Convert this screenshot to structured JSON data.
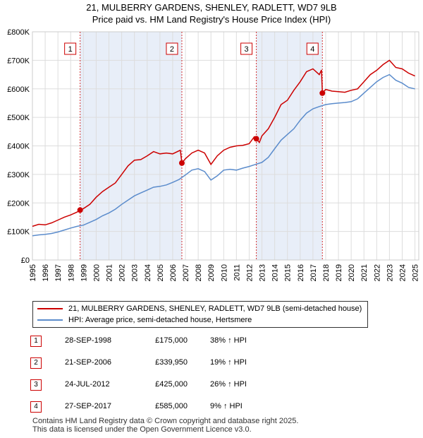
{
  "header": {
    "title_line1": "21, MULBERRY GARDENS, SHENLEY, RADLETT, WD7 9LB",
    "title_line2": "Price paid vs. HM Land Registry's House Price Index (HPI)"
  },
  "chart_data": {
    "type": "line",
    "title": "21, MULBERRY GARDENS, SHENLEY, RADLETT, WD7 9LB",
    "subtitle": "Price paid vs. HM Land Registry's House Price Index (HPI)",
    "xlabel": "",
    "ylabel": "",
    "xlim": [
      1995,
      2025.3
    ],
    "ylim": [
      0,
      800000
    ],
    "y_ticks": [
      0,
      100000,
      200000,
      300000,
      400000,
      500000,
      600000,
      700000,
      800000
    ],
    "y_tick_labels": [
      "£0",
      "£100K",
      "£200K",
      "£300K",
      "£400K",
      "£500K",
      "£600K",
      "£700K",
      "£800K"
    ],
    "x_ticks": [
      "1995",
      "1996",
      "1997",
      "1998",
      "1999",
      "2000",
      "2001",
      "2002",
      "2003",
      "2004",
      "2005",
      "2006",
      "2007",
      "2008",
      "2009",
      "2010",
      "2011",
      "2012",
      "2013",
      "2014",
      "2015",
      "2016",
      "2017",
      "2018",
      "2019",
      "2020",
      "2021",
      "2022",
      "2023",
      "2024",
      "2025"
    ],
    "grid": true,
    "colors": {
      "property": "#cc0000",
      "hpi": "#5b8ccc",
      "shade": "#e8eef8",
      "grid": "#dddddd",
      "vline": "#cc0000"
    },
    "series": [
      {
        "name": "21, MULBERRY GARDENS, SHENLEY, RADLETT, WD7 9LB (semi-detached house)",
        "key": "property",
        "points": [
          [
            1995.0,
            118000
          ],
          [
            1995.5,
            125000
          ],
          [
            1996.0,
            123000
          ],
          [
            1996.5,
            130000
          ],
          [
            1997.0,
            140000
          ],
          [
            1997.5,
            150000
          ],
          [
            1998.0,
            158000
          ],
          [
            1998.5,
            168000
          ],
          [
            1998.74,
            175000
          ],
          [
            1999.0,
            180000
          ],
          [
            1999.5,
            195000
          ],
          [
            2000.0,
            220000
          ],
          [
            2000.5,
            240000
          ],
          [
            2001.0,
            255000
          ],
          [
            2001.5,
            270000
          ],
          [
            2002.0,
            300000
          ],
          [
            2002.5,
            330000
          ],
          [
            2003.0,
            350000
          ],
          [
            2003.5,
            352000
          ],
          [
            2004.0,
            365000
          ],
          [
            2004.5,
            380000
          ],
          [
            2005.0,
            372000
          ],
          [
            2005.5,
            375000
          ],
          [
            2006.0,
            372000
          ],
          [
            2006.6,
            385000
          ],
          [
            2006.72,
            339950
          ],
          [
            2007.0,
            355000
          ],
          [
            2007.5,
            375000
          ],
          [
            2008.0,
            385000
          ],
          [
            2008.5,
            375000
          ],
          [
            2009.0,
            335000
          ],
          [
            2009.5,
            365000
          ],
          [
            2010.0,
            385000
          ],
          [
            2010.5,
            395000
          ],
          [
            2011.0,
            400000
          ],
          [
            2011.5,
            402000
          ],
          [
            2012.0,
            408000
          ],
          [
            2012.4,
            432000
          ],
          [
            2012.56,
            425000
          ],
          [
            2012.8,
            412000
          ],
          [
            2013.0,
            435000
          ],
          [
            2013.5,
            460000
          ],
          [
            2014.0,
            500000
          ],
          [
            2014.5,
            545000
          ],
          [
            2015.0,
            560000
          ],
          [
            2015.5,
            595000
          ],
          [
            2016.0,
            625000
          ],
          [
            2016.5,
            660000
          ],
          [
            2017.0,
            670000
          ],
          [
            2017.5,
            650000
          ],
          [
            2017.67,
            666000
          ],
          [
            2017.74,
            585000
          ],
          [
            2018.0,
            598000
          ],
          [
            2018.5,
            592000
          ],
          [
            2019.0,
            590000
          ],
          [
            2019.5,
            588000
          ],
          [
            2020.0,
            595000
          ],
          [
            2020.5,
            600000
          ],
          [
            2021.0,
            625000
          ],
          [
            2021.5,
            650000
          ],
          [
            2022.0,
            665000
          ],
          [
            2022.5,
            685000
          ],
          [
            2023.0,
            700000
          ],
          [
            2023.5,
            675000
          ],
          [
            2024.0,
            670000
          ],
          [
            2024.5,
            655000
          ],
          [
            2025.0,
            645000
          ]
        ]
      },
      {
        "name": "HPI: Average price, semi-detached house, Hertsmere",
        "key": "hpi",
        "points": [
          [
            1995.0,
            85000
          ],
          [
            1995.5,
            88000
          ],
          [
            1996.0,
            90000
          ],
          [
            1996.5,
            93000
          ],
          [
            1997.0,
            98000
          ],
          [
            1997.5,
            105000
          ],
          [
            1998.0,
            112000
          ],
          [
            1998.5,
            118000
          ],
          [
            1999.0,
            122000
          ],
          [
            1999.5,
            132000
          ],
          [
            2000.0,
            142000
          ],
          [
            2000.5,
            155000
          ],
          [
            2001.0,
            165000
          ],
          [
            2001.5,
            178000
          ],
          [
            2002.0,
            195000
          ],
          [
            2002.5,
            210000
          ],
          [
            2003.0,
            225000
          ],
          [
            2003.5,
            235000
          ],
          [
            2004.0,
            245000
          ],
          [
            2004.5,
            255000
          ],
          [
            2005.0,
            258000
          ],
          [
            2005.5,
            263000
          ],
          [
            2006.0,
            272000
          ],
          [
            2006.5,
            282000
          ],
          [
            2007.0,
            298000
          ],
          [
            2007.5,
            315000
          ],
          [
            2008.0,
            320000
          ],
          [
            2008.5,
            310000
          ],
          [
            2009.0,
            280000
          ],
          [
            2009.5,
            295000
          ],
          [
            2010.0,
            315000
          ],
          [
            2010.5,
            318000
          ],
          [
            2011.0,
            315000
          ],
          [
            2011.5,
            322000
          ],
          [
            2012.0,
            328000
          ],
          [
            2012.5,
            335000
          ],
          [
            2013.0,
            342000
          ],
          [
            2013.5,
            360000
          ],
          [
            2014.0,
            390000
          ],
          [
            2014.5,
            420000
          ],
          [
            2015.0,
            440000
          ],
          [
            2015.5,
            460000
          ],
          [
            2016.0,
            490000
          ],
          [
            2016.5,
            515000
          ],
          [
            2017.0,
            530000
          ],
          [
            2017.5,
            538000
          ],
          [
            2018.0,
            545000
          ],
          [
            2018.5,
            548000
          ],
          [
            2019.0,
            550000
          ],
          [
            2019.5,
            552000
          ],
          [
            2020.0,
            555000
          ],
          [
            2020.5,
            565000
          ],
          [
            2021.0,
            585000
          ],
          [
            2021.5,
            605000
          ],
          [
            2022.0,
            625000
          ],
          [
            2022.5,
            640000
          ],
          [
            2023.0,
            650000
          ],
          [
            2023.5,
            630000
          ],
          [
            2024.0,
            620000
          ],
          [
            2024.5,
            605000
          ],
          [
            2025.0,
            600000
          ]
        ]
      }
    ],
    "shaded_ranges": [
      [
        1998.74,
        2006.72
      ],
      [
        2012.56,
        2017.74
      ]
    ],
    "sale_markers": [
      {
        "label": "1",
        "year": 1998.74,
        "price": 175000
      },
      {
        "label": "2",
        "year": 2006.72,
        "price": 339950
      },
      {
        "label": "3",
        "year": 2012.56,
        "price": 425000
      },
      {
        "label": "4",
        "year": 2017.74,
        "price": 585000
      }
    ]
  },
  "legend": {
    "property_label": "21, MULBERRY GARDENS, SHENLEY, RADLETT, WD7 9LB (semi-detached house)",
    "hpi_label": "HPI: Average price, semi-detached house, Hertsmere"
  },
  "sales": [
    {
      "num": "1",
      "date": "28-SEP-1998",
      "price": "£175,000",
      "hpi": "38% ↑ HPI"
    },
    {
      "num": "2",
      "date": "21-SEP-2006",
      "price": "£339,950",
      "hpi": "19% ↑ HPI"
    },
    {
      "num": "3",
      "date": "24-JUL-2012",
      "price": "£425,000",
      "hpi": "26% ↑ HPI"
    },
    {
      "num": "4",
      "date": "27-SEP-2017",
      "price": "£585,000",
      "hpi": "9% ↑ HPI"
    }
  ],
  "footer": {
    "line1": "Contains HM Land Registry data © Crown copyright and database right 2025.",
    "line2": "This data is licensed under the Open Government Licence v3.0."
  }
}
